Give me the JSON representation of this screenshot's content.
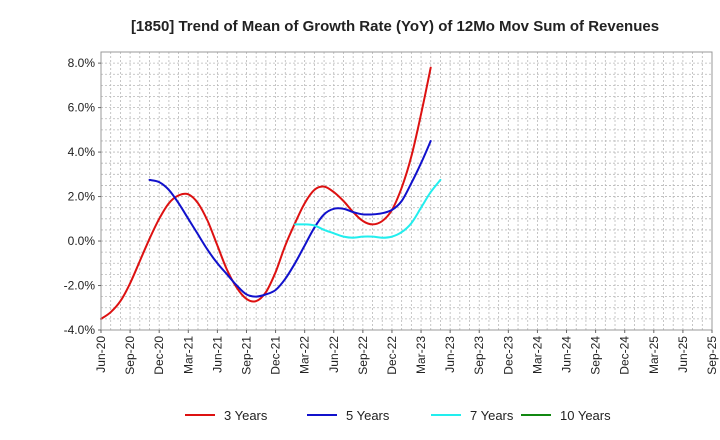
{
  "chart_data": {
    "type": "line",
    "title": "[1850]  Trend of Mean of Growth Rate (YoY) of 12Mo Mov Sum of Revenues",
    "xlabel": "",
    "ylabel": "",
    "x_ticks": [
      "Jun-20",
      "Sep-20",
      "Dec-20",
      "Mar-21",
      "Jun-21",
      "Sep-21",
      "Dec-21",
      "Mar-22",
      "Jun-22",
      "Sep-22",
      "Dec-22",
      "Mar-23",
      "Jun-23",
      "Sep-23",
      "Dec-23",
      "Mar-24",
      "Jun-24",
      "Sep-24",
      "Dec-24",
      "Mar-25",
      "Jun-25",
      "Sep-25"
    ],
    "y_ticks": [
      "8.0%",
      "6.0%",
      "4.0%",
      "2.0%",
      "0.0%",
      "-2.0%",
      "-4.0%"
    ],
    "ylim": [
      -4.0,
      8.5
    ],
    "grid": true,
    "legend_position": "bottom",
    "series": [
      {
        "name": "3 Years",
        "color": "#dd1111",
        "points": [
          [
            0,
            -3.5
          ],
          [
            1,
            -3.2
          ],
          [
            2,
            -2.7
          ],
          [
            3,
            -1.9
          ],
          [
            4,
            -0.9
          ],
          [
            5,
            0.1
          ],
          [
            6,
            1.0
          ],
          [
            7,
            1.7
          ],
          [
            8,
            2.05
          ],
          [
            9,
            2.1
          ],
          [
            10,
            1.7
          ],
          [
            11,
            0.9
          ],
          [
            12,
            -0.2
          ],
          [
            13,
            -1.3
          ],
          [
            14,
            -2.1
          ],
          [
            15,
            -2.6
          ],
          [
            16,
            -2.7
          ],
          [
            17,
            -2.3
          ],
          [
            18,
            -1.4
          ],
          [
            19,
            -0.2
          ],
          [
            20,
            0.8
          ],
          [
            21,
            1.7
          ],
          [
            22,
            2.3
          ],
          [
            23,
            2.45
          ],
          [
            24,
            2.2
          ],
          [
            25,
            1.8
          ],
          [
            26,
            1.3
          ],
          [
            27,
            0.9
          ],
          [
            28,
            0.75
          ],
          [
            29,
            0.9
          ],
          [
            30,
            1.4
          ],
          [
            31,
            2.4
          ],
          [
            32,
            3.8
          ],
          [
            33,
            5.7
          ],
          [
            34,
            7.8
          ]
        ]
      },
      {
        "name": "5 Years",
        "color": "#1111cc",
        "points": [
          [
            5,
            2.75
          ],
          [
            6,
            2.65
          ],
          [
            7,
            2.3
          ],
          [
            8,
            1.7
          ],
          [
            9,
            1.0
          ],
          [
            10,
            0.3
          ],
          [
            11,
            -0.4
          ],
          [
            12,
            -1.0
          ],
          [
            13,
            -1.5
          ],
          [
            14,
            -2.0
          ],
          [
            15,
            -2.4
          ],
          [
            16,
            -2.5
          ],
          [
            17,
            -2.4
          ],
          [
            18,
            -2.2
          ],
          [
            19,
            -1.7
          ],
          [
            20,
            -1.0
          ],
          [
            21,
            -0.2
          ],
          [
            22,
            0.6
          ],
          [
            23,
            1.2
          ],
          [
            24,
            1.45
          ],
          [
            25,
            1.45
          ],
          [
            26,
            1.3
          ],
          [
            27,
            1.2
          ],
          [
            28,
            1.2
          ],
          [
            29,
            1.25
          ],
          [
            30,
            1.4
          ],
          [
            31,
            1.8
          ],
          [
            32,
            2.6
          ],
          [
            33,
            3.5
          ],
          [
            34,
            4.5
          ]
        ]
      },
      {
        "name": "7 Years",
        "color": "#22eeee",
        "points": [
          [
            20,
            0.75
          ],
          [
            21,
            0.75
          ],
          [
            22,
            0.7
          ],
          [
            23,
            0.5
          ],
          [
            24,
            0.35
          ],
          [
            25,
            0.2
          ],
          [
            26,
            0.15
          ],
          [
            27,
            0.2
          ],
          [
            28,
            0.2
          ],
          [
            29,
            0.15
          ],
          [
            30,
            0.2
          ],
          [
            31,
            0.4
          ],
          [
            32,
            0.8
          ],
          [
            33,
            1.5
          ],
          [
            34,
            2.2
          ],
          [
            35,
            2.75
          ]
        ]
      },
      {
        "name": "10 Years",
        "color": "#118811",
        "points": []
      }
    ]
  }
}
